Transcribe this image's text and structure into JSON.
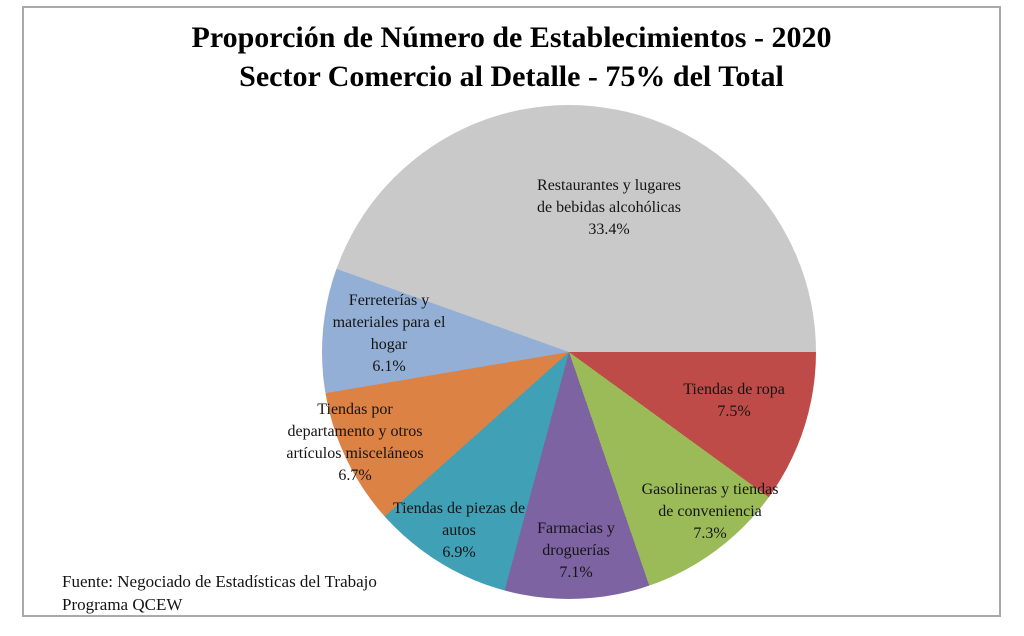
{
  "title": {
    "line1": "Proporción de Número de Establecimientos - 2020",
    "line2": "Sector Comercio al Detalle - 75% del Total"
  },
  "source": {
    "line1": "Fuente: Negociado de Estadísticas del Trabajo",
    "line2": "Programa QCEW"
  },
  "chart_data": {
    "type": "pie",
    "title": "Proporción de Número de Establecimientos - 2020 / Sector Comercio al Detalle - 75% del Total",
    "units": "percent of total establishments",
    "displayed_total": 75.0,
    "start_angle_deg": 90,
    "direction": "clockwise",
    "grid": false,
    "legend": "none (labels drawn on slices)",
    "slices": [
      {
        "name": "Tiendas de ropa",
        "value": 7.5,
        "pct_label": "7.5%",
        "color": "#be4b48",
        "label_lines": [
          "Tiendas de ropa"
        ]
      },
      {
        "name": "Gasolineras y tiendas de conveniencia",
        "value": 7.3,
        "pct_label": "7.3%",
        "color": "#9bbb59",
        "label_lines": [
          "Gasolineras y tiendas",
          "de conveniencia"
        ]
      },
      {
        "name": "Farmacias y droguerías",
        "value": 7.1,
        "pct_label": "7.1%",
        "color": "#7d63a1",
        "label_lines": [
          "Farmacias y",
          "droguerías"
        ]
      },
      {
        "name": "Tiendas de piezas de autos",
        "value": 6.9,
        "pct_label": "6.9%",
        "color": "#3fa0b6",
        "label_lines": [
          "Tiendas de piezas de",
          "autos"
        ]
      },
      {
        "name": "Tiendas por departamento y otros artículos misceláneos",
        "value": 6.7,
        "pct_label": "6.7%",
        "color": "#dc8244",
        "label_lines": [
          "Tiendas por",
          "departamento y otros",
          "artículos misceláneos"
        ]
      },
      {
        "name": "Ferreterías y materiales para el hogar",
        "value": 6.1,
        "pct_label": "6.1%",
        "color": "#93afd5",
        "label_lines": [
          "Ferreterías y",
          "materiales para el",
          "hogar"
        ]
      },
      {
        "name": "Restaurantes y lugares de bebidas alcohólicas",
        "value": 33.4,
        "pct_label": "33.4%",
        "color": "#c9c9c9",
        "label_lines": [
          "Restaurantes y lugares",
          "de bebidas alcohólicas"
        ]
      }
    ]
  }
}
